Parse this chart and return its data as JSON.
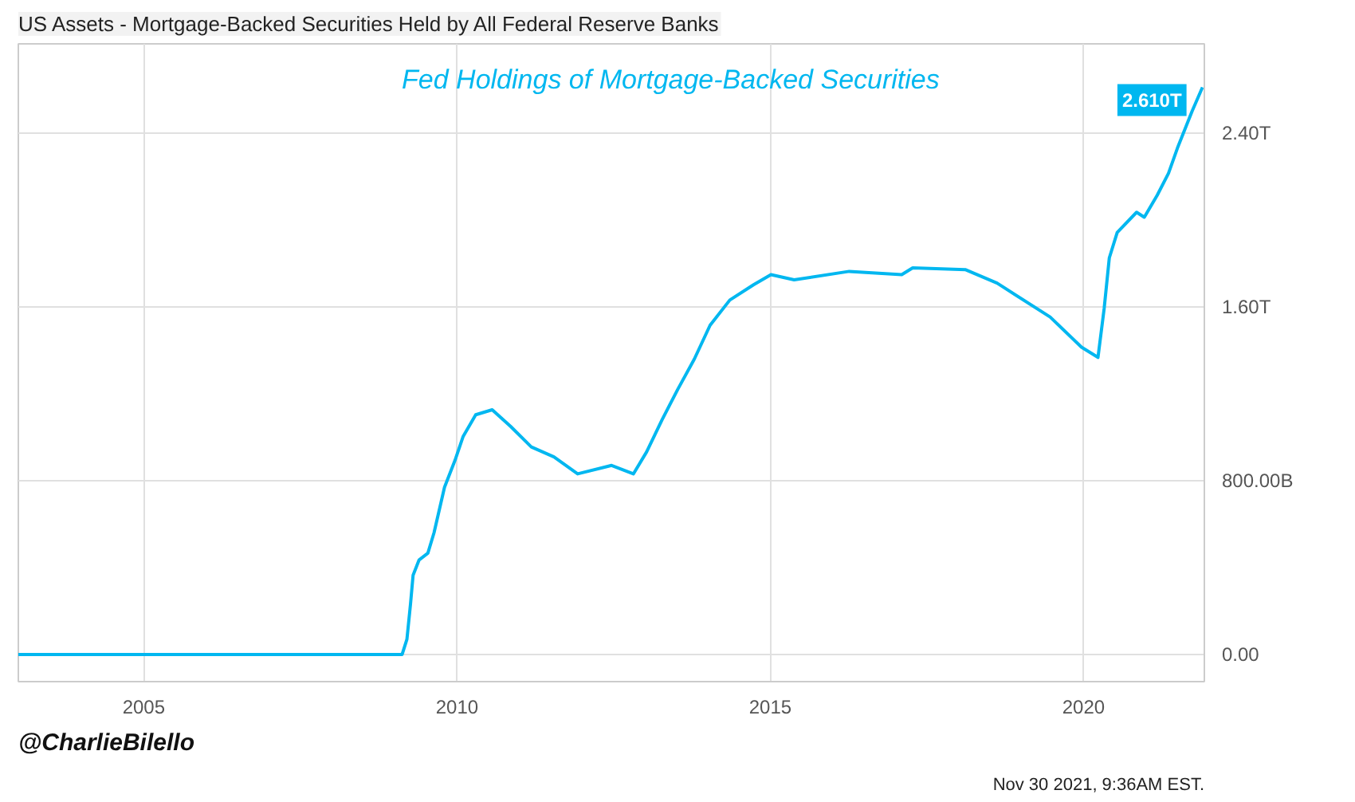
{
  "chart_data": {
    "type": "line",
    "title": "US Assets - Mortgage-Backed Securities Held by All Federal Reserve Banks",
    "subtitle": "Fed Holdings of Mortgage-Backed Securities",
    "annotations": [
      "@CharlieBilello",
      "Nov 30 2021, 9:36AM EST."
    ],
    "x": [
      "2003-01-01",
      "2009-01-10",
      "2009-02-15",
      "2009-03-15",
      "2009-04-05",
      "2009-04-20",
      "2009-05-25",
      "2009-07-15",
      "2009-08-20",
      "2009-10-20",
      "2009-12-20",
      "2010-02-05",
      "2010-04-20",
      "2010-07-25",
      "2010-11-10",
      "2011-03-10",
      "2011-07-20",
      "2011-12-05",
      "2012-06-20",
      "2012-10-25",
      "2013-01-10",
      "2013-04-10",
      "2013-07-10",
      "2013-10-15",
      "2014-01-15",
      "2014-05-10",
      "2014-09-25",
      "2015-01-05",
      "2015-05-20",
      "2016-04-05",
      "2017-02-05",
      "2017-04-10",
      "2018-02-10",
      "2018-08-15",
      "2019-06-20",
      "2019-12-20",
      "2020-03-25",
      "2020-04-30",
      "2020-05-30",
      "2020-07-15",
      "2020-11-05",
      "2020-12-20",
      "2021-03-05",
      "2021-05-10",
      "2021-07-01",
      "2021-09-25",
      "2021-11-24"
    ],
    "series": [
      {
        "color": "#00b7f0",
        "values": [
          0,
          0,
          0,
          70000000000.0,
          233000000000.0,
          365000000000.0,
          435000000000.0,
          466000000000.0,
          560000000000.0,
          769000000000.0,
          893000000000.0,
          1002000000000.0,
          1103000000000.0,
          1126000000000.0,
          1049000000000.0,
          955000000000.0,
          909000000000.0,
          831000000000.0,
          870000000000.0,
          831000000000.0,
          932000000000.0,
          1080000000000.0,
          1219000000000.0,
          1359000000000.0,
          1515000000000.0,
          1631000000000.0,
          1701000000000.0,
          1748000000000.0,
          1724000000000.0,
          1763000000000.0,
          1748000000000.0,
          1779000000000.0,
          1771000000000.0,
          1709000000000.0,
          1553000000000.0,
          1414000000000.0,
          1367000000000.0,
          1592000000000.0,
          1825000000000.0,
          1942000000000.0,
          2035000000000.0,
          2012000000000.0,
          2113000000000.0,
          2214000000000.0,
          2330000000000.0,
          2501000000000.0,
          2610000000000.0
        ],
        "value_labels": [
          null,
          null,
          null,
          null,
          null,
          null,
          null,
          null,
          null,
          null,
          null,
          null,
          null,
          null,
          null,
          null,
          null,
          null,
          null,
          null,
          null,
          null,
          null,
          null,
          null,
          null,
          null,
          null,
          null,
          null,
          null,
          null,
          null,
          null,
          null,
          null,
          null,
          null,
          null,
          null,
          null,
          null,
          null,
          null,
          null,
          null,
          "2.610T"
        ]
      }
    ],
    "xlim": [
      "2003-01-01",
      "2021-12-05"
    ],
    "xticks": [
      {
        "value": "2005-01-01",
        "label": "2005"
      },
      {
        "value": "2010-01-01",
        "label": "2010"
      },
      {
        "value": "2015-01-01",
        "label": "2015"
      },
      {
        "value": "2020-01-01",
        "label": "2020"
      }
    ],
    "ylim": [
      -125000000000.0,
      2810000000000.0
    ],
    "yticks": [
      {
        "value": 0,
        "label": "0.00"
      },
      {
        "value": 800000000000.0,
        "label": "800.00B"
      },
      {
        "value": 1600000000000.0,
        "label": "1.60T"
      },
      {
        "value": 2400000000000.0,
        "label": "2.40T"
      }
    ],
    "grid": true,
    "line_style": "solid",
    "marker": "none"
  }
}
